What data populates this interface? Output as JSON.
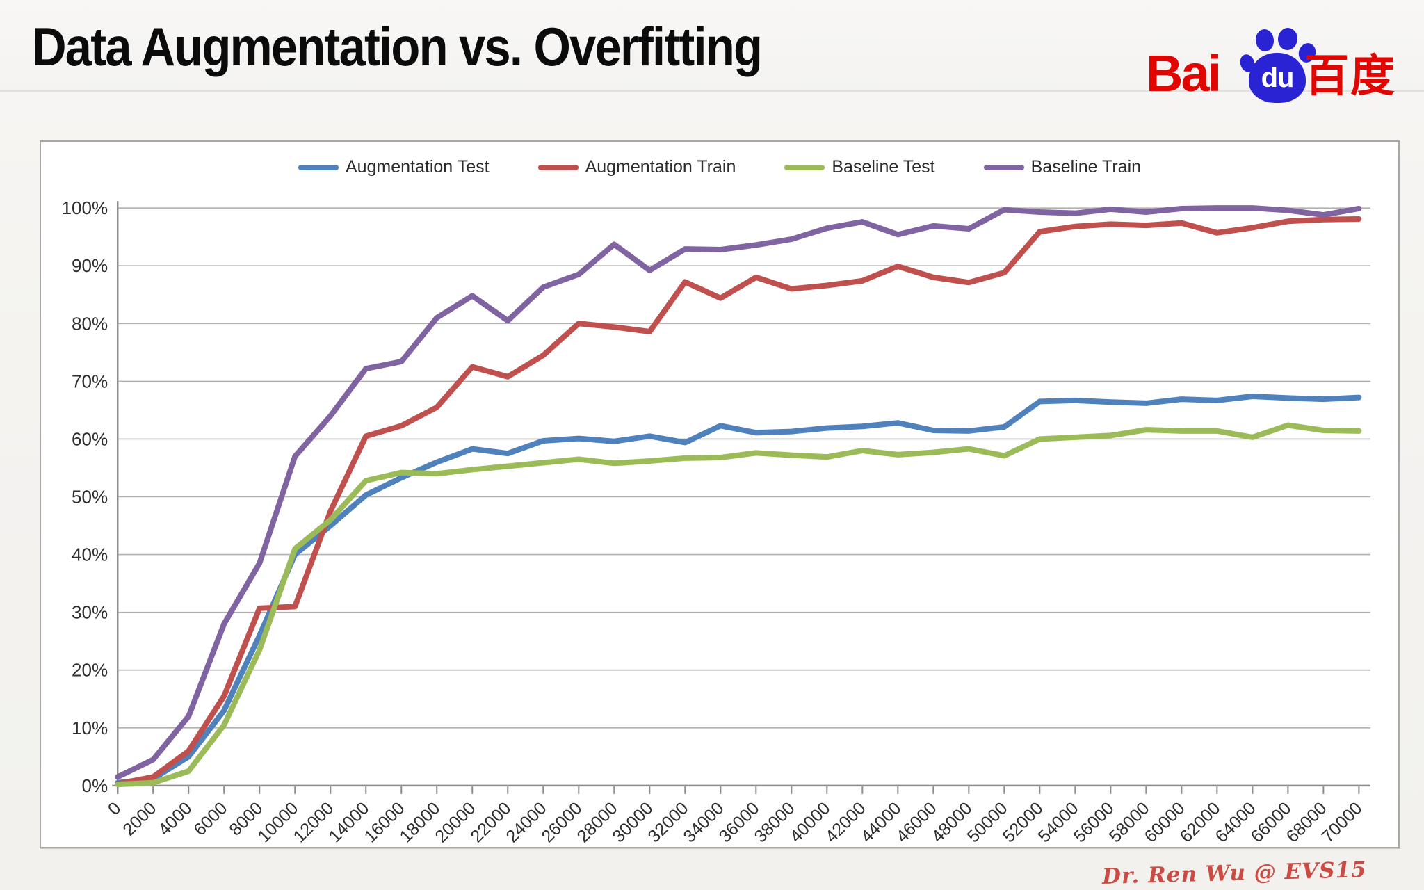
{
  "slide": {
    "title": "Data Augmentation vs. Overfitting",
    "signature": "Dr. Ren Wu @ EVS15"
  },
  "logo": {
    "bai": "Bai",
    "du": "du",
    "chinese": "百度",
    "red": "#e10602",
    "blue": "#2a23d3"
  },
  "chart_data": {
    "type": "line",
    "title": "",
    "xlabel": "",
    "ylabel": "",
    "xlim": [
      0,
      70000
    ],
    "ylim": [
      0,
      100
    ],
    "grid": true,
    "legend_position": "top",
    "x": [
      0,
      2000,
      4000,
      6000,
      8000,
      10000,
      12000,
      14000,
      16000,
      18000,
      20000,
      22000,
      24000,
      26000,
      28000,
      30000,
      32000,
      34000,
      36000,
      38000,
      40000,
      42000,
      44000,
      46000,
      48000,
      50000,
      52000,
      54000,
      56000,
      58000,
      60000,
      62000,
      64000,
      66000,
      68000,
      70000
    ],
    "x_tick_labels": [
      "0",
      "2000",
      "4000",
      "6000",
      "8000",
      "10000",
      "12000",
      "14000",
      "16000",
      "18000",
      "20000",
      "22000",
      "24000",
      "26000",
      "28000",
      "30000",
      "32000",
      "34000",
      "36000",
      "38000",
      "40000",
      "42000",
      "44000",
      "46000",
      "48000",
      "50000",
      "52000",
      "54000",
      "56000",
      "58000",
      "60000",
      "62000",
      "64000",
      "66000",
      "68000",
      "70000"
    ],
    "y_tick_labels": [
      "0%",
      "10%",
      "20%",
      "30%",
      "40%",
      "50%",
      "60%",
      "70%",
      "80%",
      "90%",
      "100%"
    ],
    "series": [
      {
        "name": "Augmentation Test",
        "color": "#4f81bd",
        "values": [
          0.5,
          1.2,
          5,
          13,
          26,
          40,
          45,
          50.3,
          53.3,
          56,
          58.3,
          57.5,
          59.7,
          60.1,
          59.6,
          60.5,
          59.4,
          62.3,
          61.1,
          61.3,
          61.9,
          62.2,
          62.8,
          61.5,
          61.4,
          62.1,
          66.5,
          66.7,
          66.4,
          66.2,
          66.9,
          66.7,
          67.4,
          67.1,
          66.9,
          67.2
        ]
      },
      {
        "name": "Augmentation Train",
        "color": "#c0504d",
        "values": [
          0.3,
          1.5,
          6,
          15.5,
          30.7,
          31,
          47.5,
          60.5,
          62.3,
          65.5,
          72.5,
          70.8,
          74.5,
          80,
          79.4,
          78.6,
          87.2,
          84.4,
          88,
          86,
          86.6,
          87.4,
          89.9,
          88,
          87.1,
          88.8,
          95.9,
          96.8,
          97.2,
          97,
          97.4,
          95.7,
          96.6,
          97.7,
          98,
          98.1
        ]
      },
      {
        "name": "Baseline Test",
        "color": "#9bbb59",
        "values": [
          0.2,
          0.5,
          2.5,
          10.5,
          23.5,
          41,
          46,
          52.8,
          54.2,
          54,
          54.7,
          55.3,
          55.9,
          56.5,
          55.8,
          56.2,
          56.7,
          56.8,
          57.6,
          57.2,
          56.9,
          58,
          57.3,
          57.7,
          58.3,
          57.1,
          60,
          60.3,
          60.6,
          61.6,
          61.4,
          61.4,
          60.3,
          62.4,
          61.5,
          61.4
        ]
      },
      {
        "name": "Baseline Train",
        "color": "#8064a2",
        "values": [
          1.5,
          4.5,
          12,
          28,
          38.5,
          57,
          64,
          72.2,
          73.4,
          81,
          84.8,
          80.5,
          86.3,
          88.5,
          93.7,
          89.2,
          92.9,
          92.8,
          93.6,
          94.6,
          96.5,
          97.6,
          95.4,
          96.9,
          96.4,
          99.7,
          99.3,
          99.1,
          99.8,
          99.3,
          99.9,
          100,
          100,
          99.6,
          98.8,
          99.9
        ]
      }
    ]
  }
}
